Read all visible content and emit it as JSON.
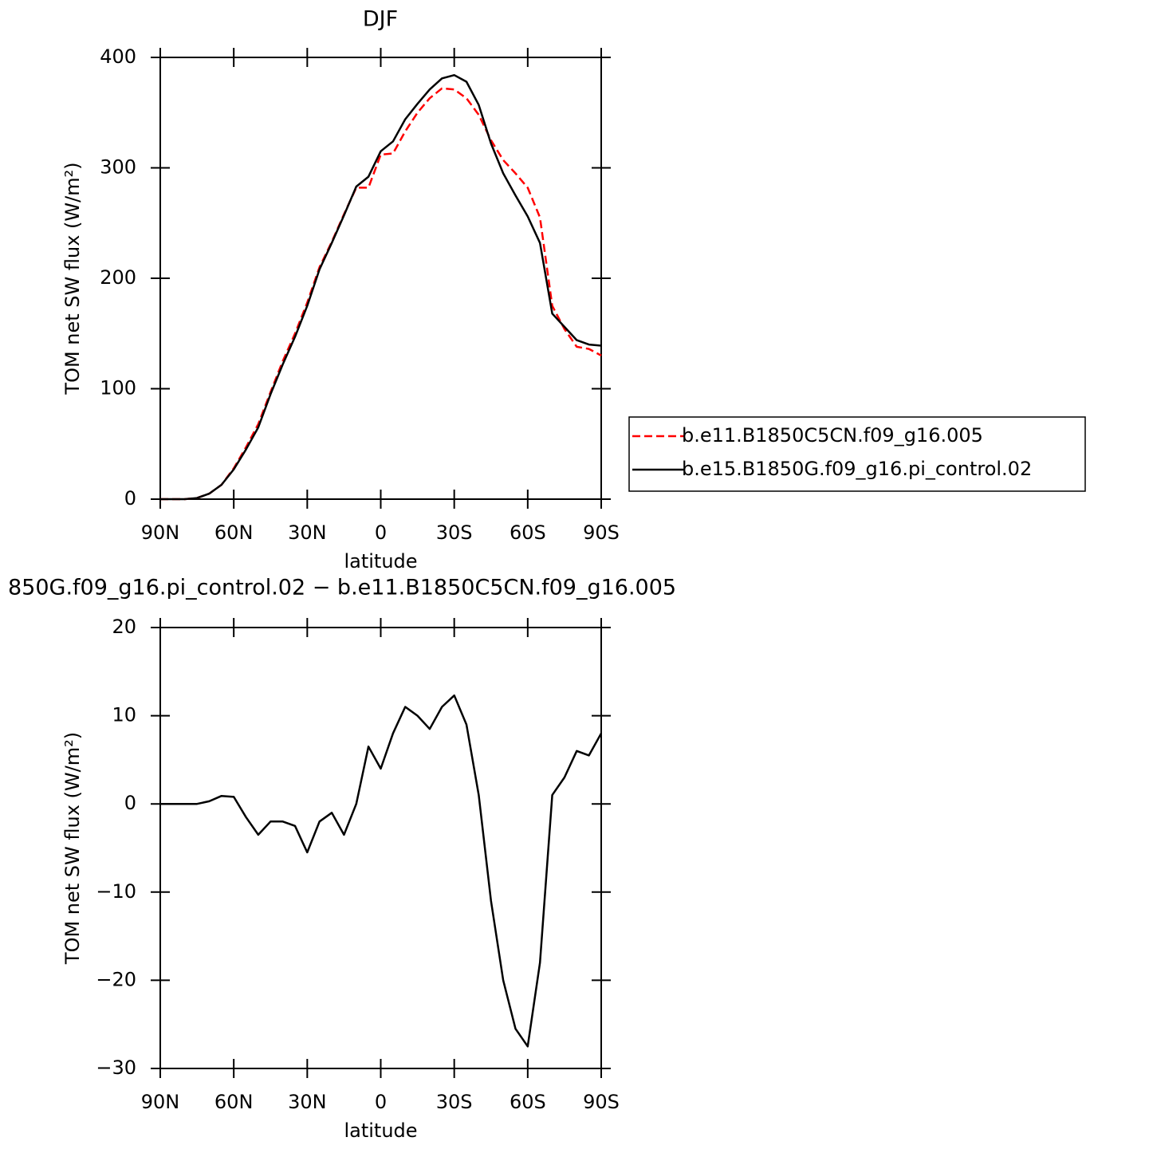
{
  "chart_data": [
    {
      "type": "line",
      "title": "DJF",
      "xlabel": "latitude",
      "ylabel": "TOM net SW flux (W/m²)",
      "x": [
        90,
        85,
        80,
        75,
        70,
        65,
        60,
        55,
        50,
        45,
        40,
        35,
        30,
        25,
        20,
        15,
        10,
        5,
        0,
        -5,
        -10,
        -15,
        -20,
        -25,
        -30,
        -35,
        -40,
        -45,
        -50,
        -55,
        -60,
        -65,
        -70,
        -75,
        -80,
        -85,
        -90
      ],
      "series": [
        {
          "name": "b.e11.B1850C5CN.f09_g16.005",
          "color": "#ff0000",
          "dashed": true,
          "values": [
            0,
            0,
            0,
            1,
            5,
            13,
            28,
            47,
            68,
            97,
            125,
            150,
            178,
            210,
            233,
            258,
            282,
            282,
            312,
            313,
            333,
            350,
            363,
            372,
            371,
            363,
            348,
            325,
            307,
            295,
            282,
            255,
            175,
            154,
            138,
            136,
            130
          ]
        },
        {
          "name": "b.e15.B1850G.f09_g16.pi_control.02",
          "color": "#000000",
          "dashed": false,
          "values": [
            0,
            0,
            0,
            1,
            5,
            13,
            27,
            45,
            65,
            95,
            122,
            147,
            175,
            208,
            232,
            257,
            283,
            292,
            315,
            324,
            344,
            358,
            371,
            381,
            384,
            378,
            357,
            322,
            295,
            275,
            256,
            232,
            168,
            156,
            144,
            140,
            139
          ]
        }
      ],
      "xlim": [
        90,
        -90
      ],
      "xticks": [
        {
          "value": 90,
          "label": "90N"
        },
        {
          "value": 60,
          "label": "60N"
        },
        {
          "value": 30,
          "label": "30N"
        },
        0,
        {
          "value": -30,
          "label": "30S"
        },
        {
          "value": -60,
          "label": "60S"
        },
        {
          "value": -90,
          "label": "90S"
        }
      ],
      "ylim": [
        0,
        400
      ],
      "yticks": [
        0,
        100,
        200,
        300,
        400
      ],
      "legend": "right"
    },
    {
      "type": "line",
      "title": "850G.f09_g16.pi_control.02 − b.e11.B1850C5CN.f09_g16.005",
      "xlabel": "latitude",
      "ylabel": "TOM net SW flux (W/m²)",
      "x": [
        90,
        85,
        80,
        75,
        70,
        65,
        60,
        55,
        50,
        45,
        40,
        35,
        30,
        25,
        20,
        15,
        10,
        5,
        0,
        -5,
        -10,
        -15,
        -20,
        -25,
        -30,
        -35,
        -40,
        -45,
        -50,
        -55,
        -60,
        -65,
        -70,
        -75,
        -80,
        -85,
        -90
      ],
      "series": [
        {
          "color": "#000000",
          "dashed": false,
          "values": [
            0,
            0,
            0,
            0,
            0.3,
            0.9,
            0.8,
            -1.5,
            -3.5,
            -2,
            -2,
            -2.5,
            -5.5,
            -2,
            -1,
            -3.5,
            0,
            6.5,
            4,
            8,
            11,
            10,
            8.5,
            11,
            12.3,
            9,
            1,
            -11,
            -20,
            -25.5,
            -27.5,
            -18,
            1,
            3,
            6,
            5.5,
            8
          ]
        }
      ],
      "xlim": [
        90,
        -90
      ],
      "xticks": [
        {
          "value": 90,
          "label": "90N"
        },
        {
          "value": 60,
          "label": "60N"
        },
        {
          "value": 30,
          "label": "30N"
        },
        0,
        {
          "value": -30,
          "label": "30S"
        },
        {
          "value": -60,
          "label": "60S"
        },
        {
          "value": -90,
          "label": "90S"
        }
      ],
      "ylim": [
        -30,
        20
      ],
      "yticks": [
        {
          "value": -30,
          "label": "−30"
        },
        {
          "value": -20,
          "label": "−20"
        },
        {
          "value": -10,
          "label": "−10"
        },
        0,
        10,
        20
      ]
    }
  ]
}
